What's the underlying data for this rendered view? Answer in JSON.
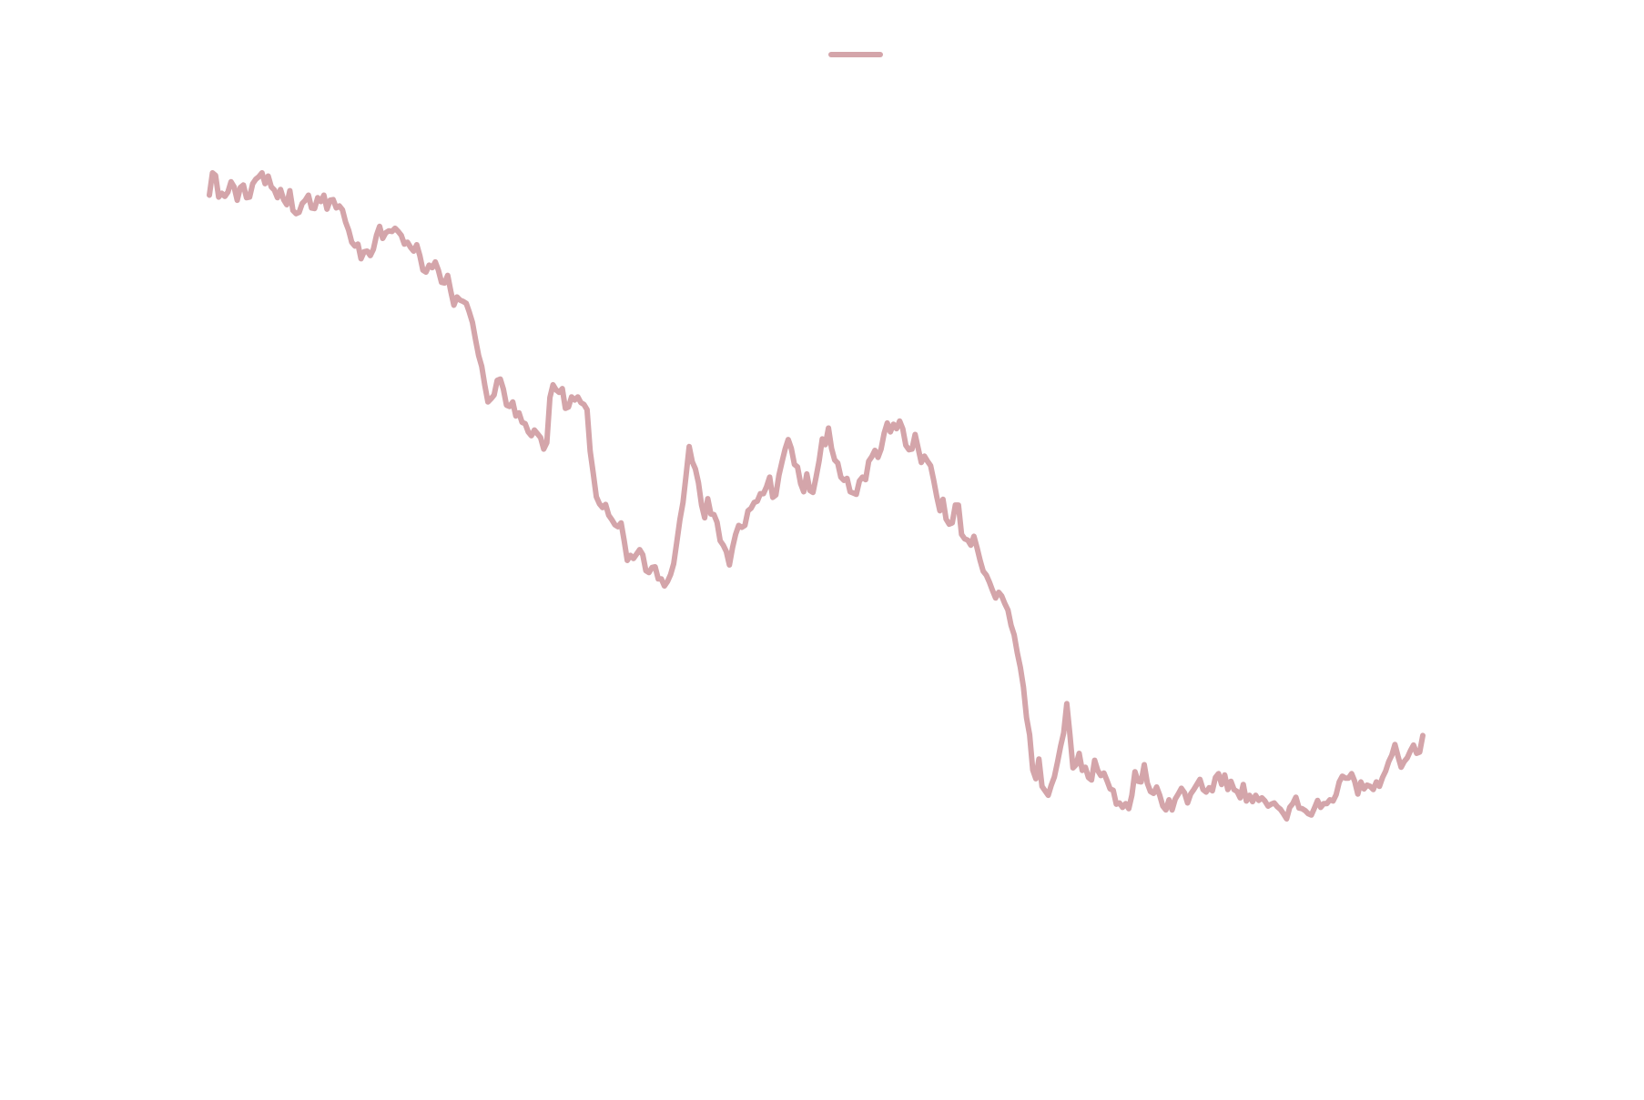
{
  "chart_data": {
    "type": "line",
    "title": "",
    "xlabel": "",
    "ylabel": "",
    "legend": {
      "placement": "top-center"
    },
    "grid": false,
    "axes_visible": false,
    "series": [
      {
        "color": "#d4a5aa",
        "values": [
          160.5,
          164.0,
          163.6,
          160.2,
          160.8,
          160.3,
          161.0,
          162.6,
          161.8,
          159.7,
          161.7,
          162.1,
          160.1,
          160.2,
          162.3,
          163.0,
          163.4,
          164.0,
          162.3,
          163.5,
          161.8,
          161.3,
          160.1,
          161.4,
          159.8,
          159.0,
          161.2,
          158.1,
          157.6,
          157.8,
          159.2,
          159.7,
          160.5,
          158.5,
          158.4,
          160.1,
          159.5,
          160.5,
          158.3,
          159.7,
          159.8,
          158.5,
          158.8,
          158.2,
          156.3,
          155.0,
          153.1,
          152.5,
          152.8,
          150.5,
          151.6,
          151.7,
          151.0,
          152.0,
          154.2,
          155.6,
          153.7,
          154.6,
          154.9,
          154.8,
          155.3,
          154.8,
          154.2,
          152.8,
          153.1,
          152.3,
          151.7,
          152.7,
          151.0,
          148.7,
          148.4,
          149.5,
          149.1,
          150.0,
          148.7,
          146.8,
          146.7,
          147.9,
          145.4,
          143.2,
          144.5,
          144.0,
          143.8,
          143.5,
          142.1,
          140.5,
          137.8,
          135.3,
          133.6,
          130.6,
          128.0,
          128.5,
          129.1,
          131.4,
          131.6,
          130.0,
          127.5,
          127.3,
          128.0,
          125.8,
          126.3,
          124.8,
          124.6,
          123.3,
          122.7,
          123.6,
          123.0,
          122.4,
          120.6,
          121.6,
          128.7,
          130.7,
          129.9,
          129.5,
          130.1,
          127.0,
          127.2,
          128.8,
          128.3,
          128.8,
          127.9,
          127.6,
          126.8,
          120.3,
          116.8,
          113.1,
          112.0,
          111.4,
          111.9,
          110.2,
          109.5,
          108.7,
          108.4,
          109.0,
          106.2,
          103.1,
          103.9,
          103.4,
          104.1,
          104.8,
          104.0,
          101.5,
          101.2,
          102.0,
          102.1,
          100.2,
          100.2,
          99.1,
          99.8,
          100.9,
          102.6,
          106.0,
          109.5,
          112.2,
          116.5,
          121.0,
          118.6,
          117.5,
          115.3,
          111.8,
          109.8,
          112.8,
          110.4,
          110.3,
          109.1,
          106.2,
          105.5,
          104.5,
          102.4,
          105.1,
          107.2,
          108.6,
          108.3,
          108.6,
          110.9,
          111.3,
          112.2,
          112.4,
          113.6,
          113.6,
          114.7,
          116.2,
          113.0,
          113.4,
          116.5,
          118.6,
          120.6,
          122.1,
          120.7,
          118.2,
          117.8,
          115.2,
          113.9,
          116.7,
          114.1,
          113.8,
          116.2,
          118.8,
          122.2,
          121.3,
          123.9,
          120.7,
          118.9,
          118.4,
          116.2,
          115.7,
          116.0,
          113.9,
          113.7,
          113.5,
          115.6,
          116.2,
          115.8,
          118.7,
          119.4,
          120.4,
          119.3,
          120.6,
          123.1,
          124.7,
          123.3,
          124.5,
          123.8,
          125.0,
          123.8,
          121.2,
          120.5,
          120.6,
          122.9,
          120.7,
          118.5,
          119.5,
          118.7,
          118.0,
          115.7,
          113.1,
          110.9,
          112.7,
          109.6,
          108.8,
          109.0,
          111.8,
          111.8,
          107.2,
          106.5,
          106.3,
          105.5,
          106.9,
          105.1,
          103.1,
          101.4,
          100.8,
          99.7,
          98.4,
          97.2,
          98.1,
          97.5,
          96.3,
          95.3,
          92.9,
          91.4,
          88.6,
          86.3,
          83.2,
          78.4,
          75.7,
          70.2,
          68.8,
          71.9,
          67.6,
          66.9,
          66.2,
          67.8,
          69.1,
          71.4,
          73.9,
          76.0,
          80.6,
          75.8,
          70.5,
          71.0,
          72.8,
          70.1,
          70.6,
          69.0,
          68.6,
          71.7,
          70.1,
          69.3,
          69.7,
          68.5,
          67.2,
          67.0,
          64.8,
          65.0,
          64.3,
          64.9,
          64.1,
          66.2,
          69.9,
          68.4,
          68.3,
          71.0,
          68.1,
          66.8,
          66.5,
          67.5,
          66.2,
          64.5,
          63.9,
          65.5,
          63.9,
          65.6,
          66.4,
          67.3,
          66.6,
          65.0,
          66.4,
          67.1,
          67.9,
          68.7,
          67.1,
          66.7,
          67.4,
          66.9,
          69.0,
          69.6,
          67.9,
          69.4,
          67.1,
          68.4,
          67.1,
          66.8,
          65.8,
          67.9,
          65.3,
          66.2,
          65.2,
          66.2,
          65.4,
          65.8,
          65.3,
          64.5,
          64.8,
          65.0,
          64.4,
          64.0,
          63.3,
          62.5,
          64.3,
          64.9,
          65.9,
          64.2,
          64.1,
          63.8,
          63.3,
          63.1,
          64.2,
          65.4,
          64.3,
          64.9,
          64.9,
          65.5,
          65.3,
          66.3,
          68.3,
          69.2,
          68.9,
          68.9,
          69.6,
          68.4,
          66.4,
          68.3,
          67.2,
          67.8,
          67.6,
          67.1,
          68.3,
          67.6,
          69.0,
          70.0,
          71.5,
          72.5,
          74.2,
          72.3,
          70.6,
          71.5,
          72.1,
          73.2,
          74.1,
          72.8,
          73.0,
          75.6
        ]
      }
    ]
  }
}
